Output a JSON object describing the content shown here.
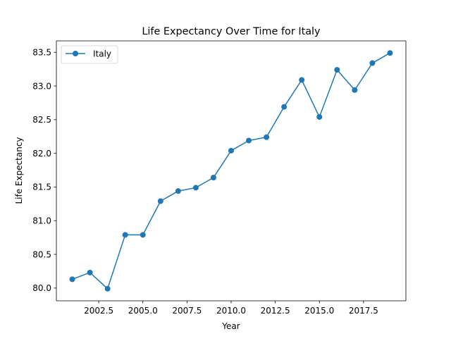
{
  "chart_data": {
    "type": "line",
    "title": "Life Expectancy Over Time for Italy",
    "xlabel": "Year",
    "ylabel": "Life Expectancy",
    "xlim": [
      2000.1,
      2019.9
    ],
    "ylim": [
      79.81,
      83.67
    ],
    "grid": false,
    "legend_position": "upper-left",
    "x_ticks": [
      2002.5,
      2005.0,
      2007.5,
      2010.0,
      2012.5,
      2015.0,
      2017.5
    ],
    "x_tick_labels": [
      "2002.5",
      "2005.0",
      "2007.5",
      "2010.0",
      "2012.5",
      "2015.0",
      "2017.5"
    ],
    "y_ticks": [
      80.0,
      80.5,
      81.0,
      81.5,
      82.0,
      82.5,
      83.0,
      83.5
    ],
    "y_tick_labels": [
      "80.0",
      "80.5",
      "81.0",
      "81.5",
      "82.0",
      "82.5",
      "83.0",
      "83.5"
    ],
    "x": [
      2001,
      2002,
      2003,
      2004,
      2005,
      2006,
      2007,
      2008,
      2009,
      2010,
      2011,
      2012,
      2013,
      2014,
      2015,
      2016,
      2017,
      2018,
      2019
    ],
    "series": [
      {
        "name": "Italy",
        "color": "#1f77b4",
        "marker": "circle",
        "values": [
          80.13,
          80.23,
          79.99,
          80.79,
          80.79,
          81.29,
          81.44,
          81.49,
          81.64,
          82.04,
          82.19,
          82.24,
          82.69,
          83.09,
          82.54,
          83.24,
          82.94,
          83.34,
          83.49
        ]
      }
    ]
  }
}
